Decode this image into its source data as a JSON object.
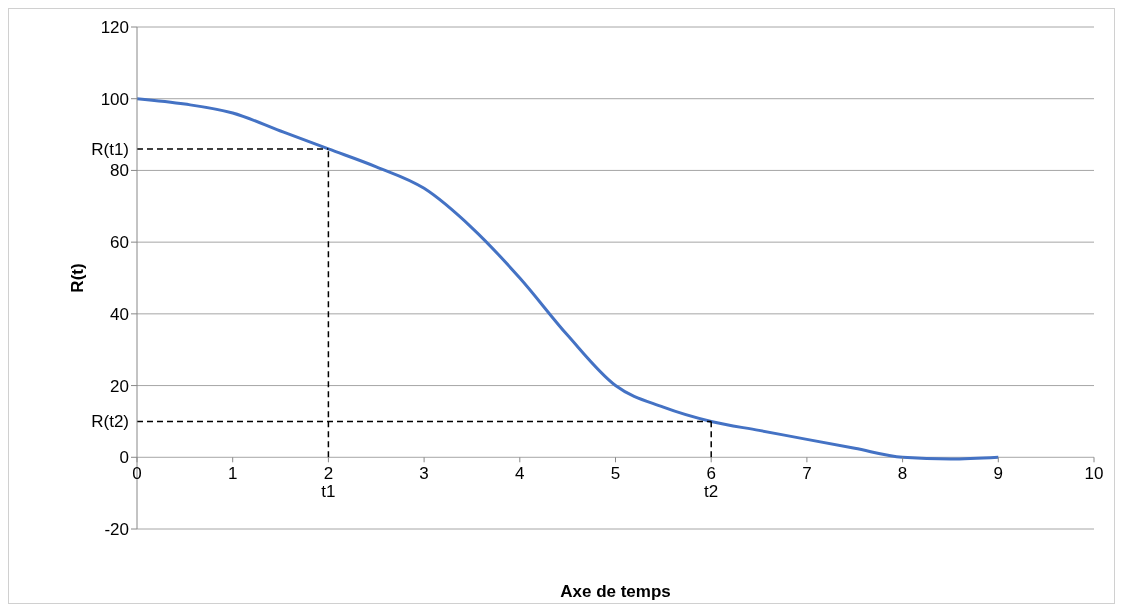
{
  "chart_data": {
    "type": "line",
    "xlabel": "Axe de temps",
    "ylabel": "R(t)",
    "x": [
      0,
      0.5,
      1,
      1.5,
      2,
      2.5,
      3,
      3.5,
      4,
      4.5,
      5,
      5.5,
      6,
      6.5,
      7,
      7.5,
      8,
      8.5,
      9
    ],
    "series": [
      {
        "color": "#4472c4",
        "values": [
          100,
          98.5,
          96,
          91,
          86,
          81,
          75,
          64,
          50,
          34,
          20,
          14,
          10,
          7.5,
          5,
          2.5,
          0,
          -0.5,
          0
        ]
      }
    ],
    "xlim": [
      0,
      10
    ],
    "xticks": [
      0,
      1,
      2,
      3,
      4,
      5,
      6,
      7,
      8,
      9,
      10
    ],
    "ylim": [
      -20,
      120
    ],
    "yticks": [
      -20,
      0,
      20,
      40,
      60,
      80,
      100,
      120
    ],
    "ref_lines": [
      {
        "axis": "y",
        "value": 86,
        "label": "R(t1)",
        "line_style": "dashed",
        "color": "#000000"
      },
      {
        "axis": "x",
        "value": 2,
        "label": "t1",
        "line_style": "dashed",
        "color": "#000000"
      },
      {
        "axis": "y",
        "value": 10,
        "label": "R(t2)",
        "line_style": "dashed",
        "color": "#000000"
      },
      {
        "axis": "x",
        "value": 6,
        "label": "t2",
        "line_style": "dashed",
        "color": "#000000"
      }
    ],
    "grid": "y",
    "marker": "none",
    "line_style": "solid",
    "legend": false
  }
}
